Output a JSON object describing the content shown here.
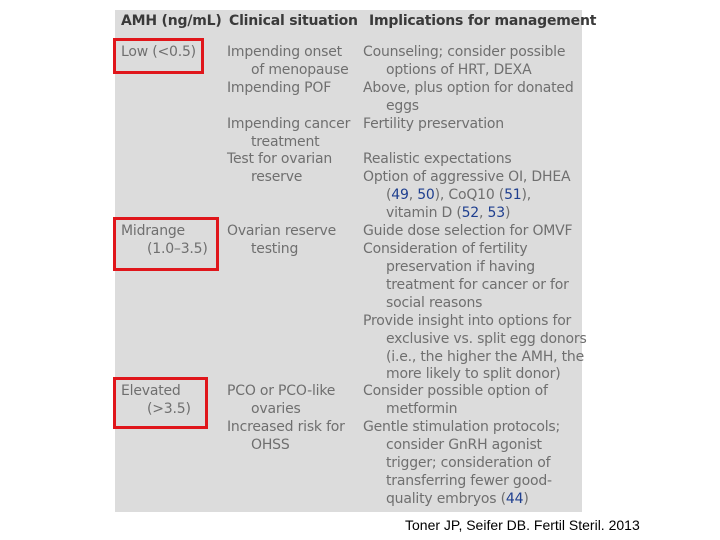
{
  "table": {
    "headers": {
      "col1": "AMH (ng/mL)",
      "col2": "Clinical situation",
      "col3": "Implications for management"
    },
    "rows": [
      {
        "c1": "Low (<0.5)",
        "c2": "Impending onset",
        "c3": "Counseling; consider possible"
      },
      {
        "c1": "",
        "c2": "of menopause",
        "c3": "options of HRT, DEXA"
      },
      {
        "c1": "",
        "c2": "Impending POF",
        "c3": "Above, plus option for donated"
      },
      {
        "c1": "",
        "c2": "",
        "c3": "eggs"
      },
      {
        "c1": "",
        "c2": "Impending cancer",
        "c3": "Fertility preservation"
      },
      {
        "c1": "",
        "c2": "treatment",
        "c3": ""
      },
      {
        "c1": "",
        "c2": "Test for ovarian",
        "c3": "Realistic expectations"
      },
      {
        "c1": "",
        "c2": "reserve",
        "c3": "Option of aggressive OI, DHEA"
      },
      {
        "c1": "",
        "c2": "",
        "c3": ""
      },
      {
        "c1": "",
        "c2": "",
        "c3": ""
      },
      {
        "c1": "Midrange",
        "c2": "Ovarian reserve",
        "c3": "Guide dose selection for OMVF"
      },
      {
        "c1": "(1.0–3.5)",
        "c2": "testing",
        "c3": "Consideration of fertility"
      },
      {
        "c1": "",
        "c2": "",
        "c3": "preservation if having"
      },
      {
        "c1": "",
        "c2": "",
        "c3": "treatment for cancer or for"
      },
      {
        "c1": "",
        "c2": "",
        "c3": "social reasons"
      },
      {
        "c1": "",
        "c2": "",
        "c3": "Provide insight into options for"
      },
      {
        "c1": "",
        "c2": "",
        "c3": "exclusive vs. split egg donors"
      },
      {
        "c1": "",
        "c2": "",
        "c3": "(i.e., the higher the AMH, the"
      },
      {
        "c1": "",
        "c2": "",
        "c3": "more likely to split donor)"
      },
      {
        "c1": "Elevated",
        "c2": "PCO or PCO-like",
        "c3": "Consider possible option of"
      },
      {
        "c1": "(>3.5)",
        "c2": "ovaries",
        "c3": "metformin"
      },
      {
        "c1": "",
        "c2": "Increased risk for",
        "c3": "Gentle stimulation protocols;"
      },
      {
        "c1": "",
        "c2": "OHSS",
        "c3": "consider GnRH agonist"
      },
      {
        "c1": "",
        "c2": "",
        "c3": "trigger; consideration of"
      },
      {
        "c1": "",
        "c2": "",
        "c3": "transferring fewer good-"
      }
    ],
    "refline1": {
      "a": "(",
      "r1": "49",
      "b": ", ",
      "r2": "50",
      "c": "), CoQ10 (",
      "r3": "51",
      "d": "),"
    },
    "refline2": {
      "a": "vitamin D (",
      "r1": "52",
      "b": ", ",
      "r2": "53",
      "c": ")"
    },
    "refline3": {
      "a": "quality embryos (",
      "r1": "44",
      "b": ")"
    }
  },
  "citation": "Toner JP, Seifer DB. Fertil Steril. 2013"
}
